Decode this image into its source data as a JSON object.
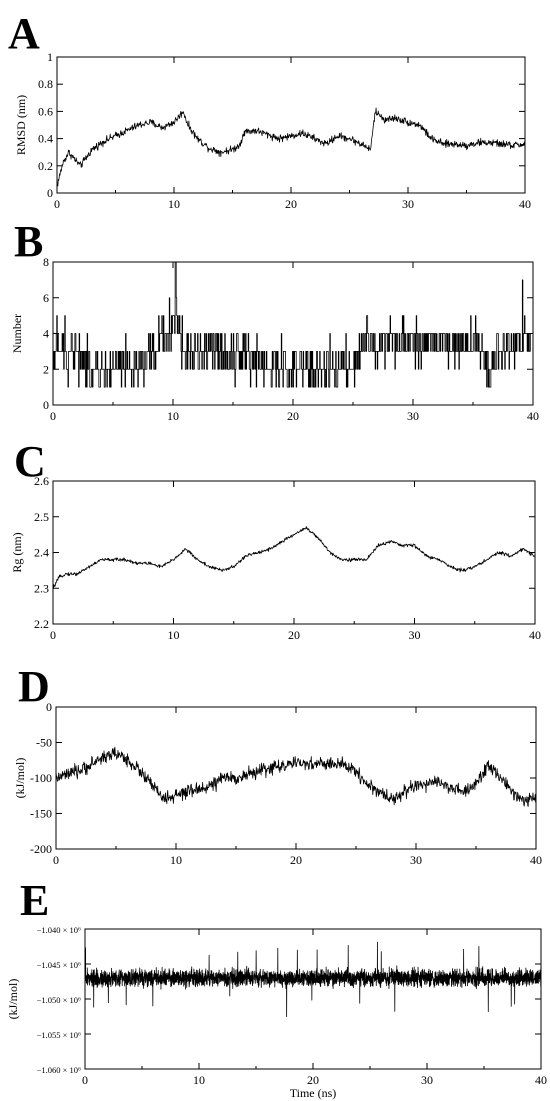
{
  "chart_data": [
    {
      "panel": "A",
      "type": "line",
      "xlabel": "",
      "ylabel": "RMSD (nm)",
      "xlim": [
        0,
        40
      ],
      "ylim": [
        0,
        1
      ],
      "xticks": [
        "0",
        "10",
        "20",
        "30",
        "40"
      ],
      "yticks": [
        "0",
        "0.2",
        "0.4",
        "0.6",
        "0.8",
        "1"
      ],
      "x": [
        0,
        0.5,
        1,
        1.5,
        2,
        2.5,
        3,
        4,
        5,
        6,
        7,
        8,
        9,
        10,
        10.8,
        11.2,
        12,
        13,
        14,
        15,
        15.6,
        16,
        17,
        18,
        19,
        20,
        21,
        22,
        23,
        24,
        25,
        26,
        26.8,
        27.2,
        28,
        29,
        30,
        31,
        32,
        33,
        34,
        35,
        36,
        37,
        38,
        39,
        40
      ],
      "y": [
        0.05,
        0.22,
        0.3,
        0.25,
        0.2,
        0.26,
        0.32,
        0.38,
        0.42,
        0.46,
        0.5,
        0.52,
        0.48,
        0.52,
        0.6,
        0.5,
        0.4,
        0.33,
        0.3,
        0.32,
        0.35,
        0.45,
        0.46,
        0.43,
        0.4,
        0.42,
        0.44,
        0.4,
        0.36,
        0.42,
        0.4,
        0.36,
        0.32,
        0.6,
        0.54,
        0.55,
        0.52,
        0.5,
        0.4,
        0.36,
        0.36,
        0.35,
        0.37,
        0.37,
        0.36,
        0.35,
        0.36
      ],
      "noise": 0.04
    },
    {
      "panel": "B",
      "type": "line",
      "xlabel": "",
      "ylabel": "Number",
      "xlim": [
        0,
        40
      ],
      "ylim": [
        0,
        8
      ],
      "xticks": [
        "0",
        "10",
        "20",
        "30",
        "40"
      ],
      "yticks": [
        "0",
        "2",
        "4",
        "6",
        "8"
      ],
      "x": [
        0,
        2,
        3,
        5,
        7,
        8.5,
        9.5,
        10.2,
        11,
        12,
        13,
        14,
        16,
        18,
        20,
        22,
        24,
        25.2,
        26,
        28,
        30,
        32,
        34,
        35.5,
        36.2,
        37,
        38,
        40
      ],
      "y": [
        3,
        3,
        2,
        2,
        2,
        3,
        4,
        5,
        3,
        3,
        3,
        3,
        3,
        2,
        2,
        2,
        2,
        2,
        3.5,
        3.5,
        3.5,
        3.5,
        3.5,
        3.5,
        2,
        3,
        3.5,
        3.5
      ],
      "noise": 1.4
    },
    {
      "panel": "C",
      "type": "line",
      "xlabel": "",
      "ylabel": "Rg (nm)",
      "xlim": [
        0,
        40
      ],
      "ylim": [
        2.2,
        2.6
      ],
      "xticks": [
        "0",
        "10",
        "20",
        "30",
        "40"
      ],
      "yticks": [
        "2.2",
        "2.3",
        "2.4",
        "2.5",
        "2.6"
      ],
      "x": [
        0,
        0.5,
        1,
        2,
        3,
        4,
        5,
        6,
        7,
        8,
        9,
        10,
        11,
        12,
        13,
        14,
        15,
        16,
        17,
        18,
        19,
        20,
        21,
        22,
        23,
        24,
        25,
        26,
        27,
        28,
        29,
        30,
        31,
        32,
        33,
        34,
        35,
        36,
        37,
        38,
        39,
        40
      ],
      "y": [
        2.3,
        2.33,
        2.34,
        2.34,
        2.36,
        2.38,
        2.38,
        2.38,
        2.37,
        2.37,
        2.36,
        2.38,
        2.41,
        2.38,
        2.36,
        2.35,
        2.36,
        2.39,
        2.4,
        2.41,
        2.43,
        2.45,
        2.47,
        2.44,
        2.4,
        2.38,
        2.38,
        2.38,
        2.42,
        2.43,
        2.42,
        2.42,
        2.39,
        2.38,
        2.36,
        2.35,
        2.36,
        2.38,
        2.4,
        2.39,
        2.41,
        2.39
      ],
      "noise": 0.007
    },
    {
      "panel": "D",
      "type": "line",
      "xlabel": "",
      "ylabel": "(kJ/mol)",
      "xlim": [
        0,
        40
      ],
      "ylim": [
        -200,
        0
      ],
      "xticks": [
        "0",
        "10",
        "20",
        "30",
        "40"
      ],
      "yticks": [
        "0",
        "-50",
        "-100",
        "-150",
        "-200"
      ],
      "x": [
        0,
        1,
        2,
        3,
        4,
        5,
        6,
        7,
        8,
        9,
        10,
        11,
        12,
        13,
        14,
        15,
        16,
        17,
        18,
        19,
        20,
        21,
        22,
        23,
        24,
        25,
        26,
        27,
        28,
        29,
        30,
        31,
        32,
        33,
        34,
        35,
        36,
        37,
        38,
        39,
        40
      ],
      "y": [
        -100,
        -95,
        -90,
        -80,
        -70,
        -65,
        -75,
        -90,
        -110,
        -130,
        -125,
        -120,
        -115,
        -110,
        -100,
        -100,
        -95,
        -90,
        -85,
        -82,
        -80,
        -80,
        -80,
        -80,
        -82,
        -90,
        -110,
        -120,
        -130,
        -120,
        -110,
        -110,
        -105,
        -115,
        -120,
        -110,
        -80,
        -100,
        -120,
        -130,
        -130
      ],
      "noise": 14
    },
    {
      "panel": "E",
      "type": "line",
      "xlabel": "Time (ns)",
      "ylabel": "(kJ/mol)",
      "xlim": [
        0,
        40
      ],
      "ylim": [
        -1060000,
        -1040000
      ],
      "xticks": [
        "0",
        "10",
        "20",
        "30",
        "40"
      ],
      "yticks": [
        "−1.040 × 10⁶",
        "−1.045 × 10⁶",
        "−1.050 × 10⁶",
        "−1.055 × 10⁶",
        "−1.060 × 10⁶"
      ],
      "x": [
        0,
        40
      ],
      "y": [
        -1047000,
        -1047000
      ],
      "noise": 1800
    }
  ],
  "panel_letters": [
    "A",
    "B",
    "C",
    "D",
    "E"
  ],
  "colors": {
    "trace": "#000000",
    "background": "#ffffff"
  }
}
